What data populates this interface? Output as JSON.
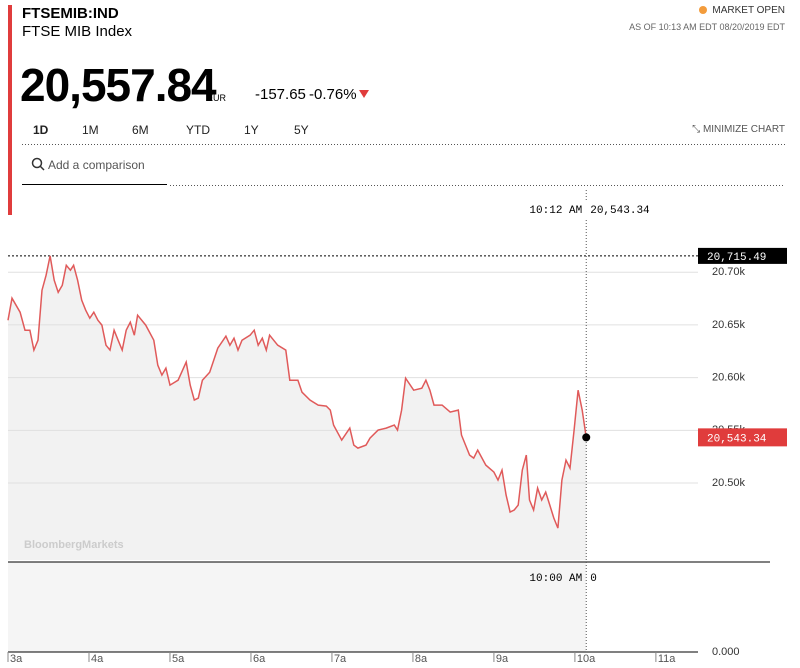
{
  "header": {
    "symbol": "FTSEMIB:IND",
    "name": "FTSE MIB Index",
    "status": "MARKET OPEN",
    "as_of": "AS OF 10:13 AM EDT 08/20/2019 EDT",
    "price": "20,557.84",
    "currency": "EUR",
    "change": "-157.65",
    "change_pct": "-0.76%",
    "tabs": [
      "1D",
      "1M",
      "6M",
      "YTD",
      "1Y",
      "5Y"
    ],
    "minimize": "MINIMIZE CHART",
    "search_placeholder": "Add a comparison"
  },
  "chart_data": {
    "type": "line",
    "watermark": "BloombergMarkets",
    "x": [
      3.0,
      3.05,
      3.15,
      3.21,
      3.27,
      3.32,
      3.37,
      3.42,
      3.47,
      3.52,
      3.57,
      3.62,
      3.67,
      3.72,
      3.77,
      3.81,
      3.86,
      3.91,
      3.96,
      4.01,
      4.06,
      4.11,
      4.16,
      4.21,
      4.26,
      4.31,
      4.36,
      4.41,
      4.46,
      4.51,
      4.56,
      4.6,
      4.7,
      4.8,
      4.85,
      4.9,
      4.95,
      5.0,
      5.1,
      5.2,
      5.25,
      5.3,
      5.35,
      5.4,
      5.49,
      5.59,
      5.69,
      5.74,
      5.79,
      5.84,
      5.89,
      5.99,
      6.04,
      6.09,
      6.14,
      6.19,
      6.23,
      6.33,
      6.43,
      6.48,
      6.58,
      6.63,
      6.73,
      6.83,
      6.93,
      6.98,
      7.02,
      7.12,
      7.22,
      7.27,
      7.32,
      7.42,
      7.47,
      7.57,
      7.67,
      7.77,
      7.81,
      7.86,
      7.91,
      8.01,
      8.11,
      8.16,
      8.21,
      8.26,
      8.36,
      8.46,
      8.56,
      8.6,
      8.7,
      8.75,
      8.8,
      8.9,
      9.0,
      9.05,
      9.1,
      9.15,
      9.2,
      9.25,
      9.3,
      9.35,
      9.4,
      9.44,
      9.49,
      9.54,
      9.59,
      9.64,
      9.69,
      9.74,
      9.79,
      9.84,
      9.89,
      9.94,
      9.99,
      10.04,
      10.09,
      10.14
    ],
    "series": [
      {
        "name": "FTSE MIB Index",
        "color": "#e05a5a",
        "values": [
          20654.5,
          20675.4,
          20662.1,
          20645.0,
          20645.0,
          20626.1,
          20635.5,
          20682.9,
          20697.2,
          20715.49,
          20692.4,
          20681.0,
          20687.7,
          20706.6,
          20701.9,
          20706.6,
          20692.4,
          20673.5,
          20664.0,
          20656.4,
          20662.1,
          20654.5,
          20649.8,
          20630.8,
          20626.1,
          20645.0,
          20635.5,
          20626.1,
          20645.0,
          20652.6,
          20640.3,
          20659.2,
          20649.8,
          20635.5,
          20611.8,
          20602.4,
          20609.0,
          20592.9,
          20597.6,
          20614.7,
          20592.9,
          20578.7,
          20580.6,
          20597.6,
          20605.2,
          20628.0,
          20639.3,
          20630.8,
          20637.4,
          20626.1,
          20635.5,
          20640.3,
          20645.0,
          20630.8,
          20637.4,
          20626.1,
          20640.3,
          20630.8,
          20626.1,
          20597.6,
          20597.6,
          20586.2,
          20578.7,
          20573.9,
          20573.0,
          20569.2,
          20555.0,
          20540.7,
          20552.1,
          20536.0,
          20533.2,
          20536.0,
          20542.6,
          20550.2,
          20552.1,
          20555.0,
          20550.2,
          20569.2,
          20599.5,
          20588.1,
          20590.0,
          20597.6,
          20588.1,
          20573.9,
          20573.9,
          20567.3,
          20569.2,
          20545.5,
          20526.5,
          20523.7,
          20531.3,
          20517.0,
          20510.4,
          20502.8,
          20512.3,
          20488.6,
          20472.5,
          20474.4,
          20479.1,
          20512.3,
          20526.5,
          20483.9,
          20474.4,
          20495.2,
          20483.9,
          20491.4,
          20479.1,
          20466.8,
          20457.3,
          20502.8,
          20521.8,
          20514.2,
          20550.2,
          20588.1,
          20569.2,
          20543.34
        ]
      }
    ],
    "xlim": [
      3,
      11.52
    ],
    "xticks": [
      {
        "value": 3,
        "label": "3a"
      },
      {
        "value": 4,
        "label": "4a"
      },
      {
        "value": 5,
        "label": "5a"
      },
      {
        "value": 6,
        "label": "6a"
      },
      {
        "value": 7,
        "label": "7a"
      },
      {
        "value": 8,
        "label": "8a"
      },
      {
        "value": 9,
        "label": "9a"
      },
      {
        "value": 10,
        "label": "10a"
      },
      {
        "value": 11,
        "label": "11a"
      }
    ],
    "ylim": [
      20427,
      20778
    ],
    "yticks": [
      {
        "value": 20500,
        "label": "20.50k"
      },
      {
        "value": 20550,
        "label": "20.55k"
      },
      {
        "value": 20600,
        "label": "20.60k"
      },
      {
        "value": 20650,
        "label": "20.65k"
      },
      {
        "value": 20700,
        "label": "20.70k"
      }
    ],
    "y2lim": [
      0,
      1
    ],
    "y2ticks": [
      {
        "value": 0,
        "label": "0.000"
      }
    ],
    "grid": true,
    "high": {
      "value": 20715.49,
      "label": "20,715.49"
    },
    "last": {
      "value": 20543.34,
      "label": "20,543.34"
    },
    "crosshair": {
      "time_label": "10:12 AM",
      "value_label": "20,543.34",
      "volume_time_label": "10:00 AM",
      "volume": 0
    }
  }
}
